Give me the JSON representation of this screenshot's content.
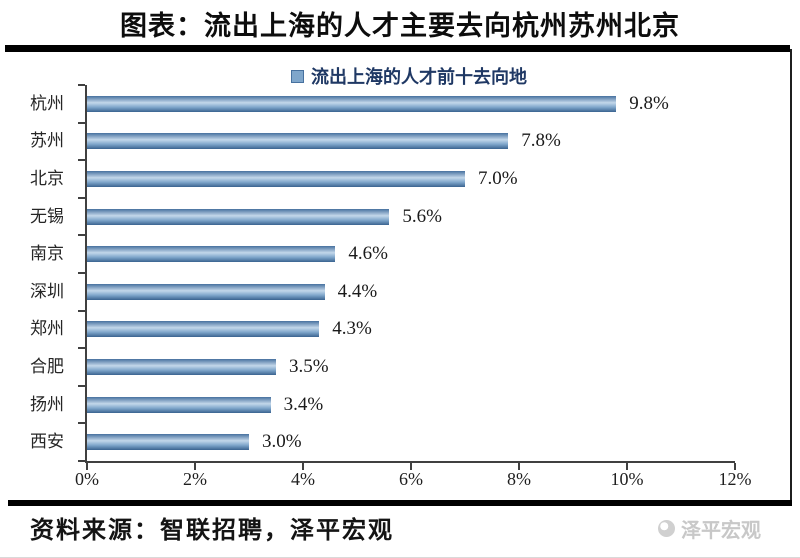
{
  "header": {
    "title": "图表：流出上海的人才主要去向杭州苏州北京"
  },
  "chart_data": {
    "type": "bar",
    "orientation": "horizontal",
    "legend": "流出上海的人才前十去向地",
    "categories": [
      "杭州",
      "苏州",
      "北京",
      "无锡",
      "南京",
      "深圳",
      "郑州",
      "合肥",
      "扬州",
      "西安"
    ],
    "values": [
      9.8,
      7.8,
      7.0,
      5.6,
      4.6,
      4.4,
      4.3,
      3.5,
      3.4,
      3.0
    ],
    "value_labels": [
      "9.8%",
      "7.8%",
      "7.0%",
      "5.6%",
      "4.6%",
      "4.4%",
      "4.3%",
      "3.5%",
      "3.4%",
      "3.0%"
    ],
    "x_ticks": [
      "0%",
      "2%",
      "4%",
      "6%",
      "8%",
      "10%",
      "12%"
    ],
    "xlim": [
      0,
      12
    ],
    "grid": false,
    "legend_position": "top-center",
    "colors": {
      "bar_edge": "#47719f",
      "bar_light": "#c3d7ea",
      "bar_mid": "#7fa6cb",
      "bar_dark": "#3a6390",
      "legend_text": "#1f3864",
      "watermark": "#c8c8c8"
    }
  },
  "footer": {
    "source": "资料来源：智联招聘，泽平宏观",
    "watermark": "泽平宏观"
  }
}
